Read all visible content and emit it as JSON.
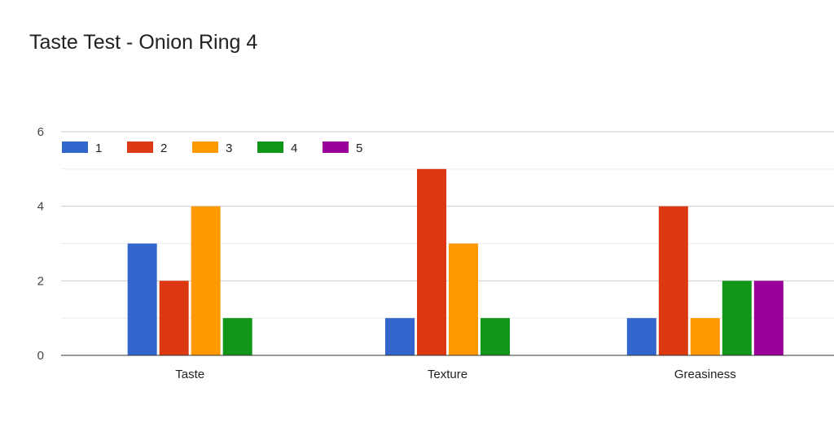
{
  "chart_data": {
    "type": "bar",
    "title": "Taste Test - Onion Ring 4",
    "categories": [
      "Taste",
      "Texture",
      "Greasiness"
    ],
    "series": [
      {
        "name": "1",
        "color": "#3366cc",
        "values": [
          3,
          1,
          1
        ]
      },
      {
        "name": "2",
        "color": "#dc3912",
        "values": [
          2,
          5,
          4
        ]
      },
      {
        "name": "3",
        "color": "#ff9900",
        "values": [
          4,
          3,
          1
        ]
      },
      {
        "name": "4",
        "color": "#109618",
        "values": [
          1,
          1,
          2
        ]
      },
      {
        "name": "5",
        "color": "#990099",
        "values": [
          0,
          0,
          2
        ]
      }
    ],
    "ylim": [
      0,
      6
    ],
    "yticks": [
      0,
      2,
      4,
      6
    ],
    "grid": true,
    "legend": "top-left"
  }
}
